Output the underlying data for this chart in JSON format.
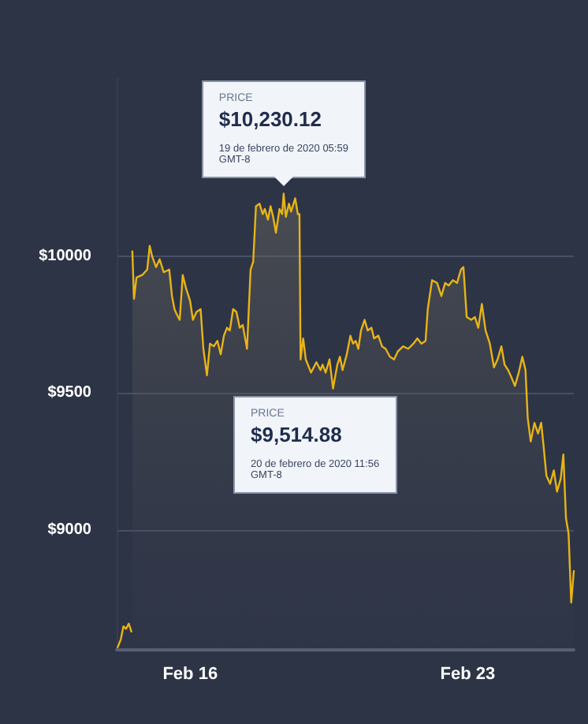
{
  "chart_data": {
    "type": "area",
    "x": [
      "2020-02-14T04:05",
      "2020-02-14T06:00",
      "2020-02-14T07:35",
      "2020-02-14T09:10",
      "2020-02-14T10:50",
      "2020-02-14T12:25",
      "2020-02-14T12:45",
      "2020-02-14T13:00",
      "2020-02-14T14:00",
      "2020-02-14T15:30",
      "2020-02-14T19:00",
      "2020-02-14T22:00",
      "2020-02-14T23:30",
      "2020-02-15T01:00",
      "2020-02-15T03:20",
      "2020-02-15T05:30",
      "2020-02-15T08:00",
      "2020-02-15T11:20",
      "2020-02-15T13:00",
      "2020-02-15T14:30",
      "2020-02-15T16:00",
      "2020-02-15T17:40",
      "2020-02-15T19:30",
      "2020-02-15T21:30",
      "2020-02-16T00:00",
      "2020-02-16T01:40",
      "2020-02-16T03:50",
      "2020-02-16T06:20",
      "2020-02-16T08:00",
      "2020-02-16T10:10",
      "2020-02-16T12:00",
      "2020-02-16T14:20",
      "2020-02-16T16:30",
      "2020-02-16T18:30",
      "2020-02-16T20:25",
      "2020-02-16T22:20",
      "2020-02-17T00:00",
      "2020-02-17T02:00",
      "2020-02-17T04:00",
      "2020-02-17T06:00",
      "2020-02-17T07:50",
      "2020-02-17T10:25",
      "2020-02-17T12:35",
      "2020-02-17T14:10",
      "2020-02-17T15:50",
      "2020-02-17T18:00",
      "2020-02-17T19:55",
      "2020-02-17T21:10",
      "2020-02-17T23:05",
      "2020-02-18T00:40",
      "2020-02-18T02:15",
      "2020-02-18T03:55",
      "2020-02-18T06:05",
      "2020-02-18T07:40",
      "2020-02-18T08:35",
      "2020-02-18T09:55",
      "2020-02-18T11:50",
      "2020-02-18T13:05",
      "2020-02-18T15:35",
      "2020-02-18T17:10",
      "2020-02-18T18:10",
      "2020-02-18T18:50",
      "2020-02-18T20:25",
      "2020-02-18T22:00",
      "2020-02-19T01:10",
      "2020-02-19T04:25",
      "2020-02-19T06:55",
      "2020-02-19T08:10",
      "2020-02-19T10:00",
      "2020-02-19T12:20",
      "2020-02-19T14:30",
      "2020-02-19T17:05",
      "2020-02-19T18:40",
      "2020-02-19T20:15",
      "2020-02-19T22:50",
      "2020-02-20T01:00",
      "2020-02-20T02:35",
      "2020-02-20T04:10",
      "2020-02-20T05:50",
      "2020-02-20T07:25",
      "2020-02-20T09:35",
      "2020-02-20T11:30",
      "2020-02-20T13:45",
      "2020-02-20T15:20",
      "2020-02-20T17:55",
      "2020-02-20T20:10",
      "2020-02-20T22:20",
      "2020-02-21T00:55",
      "2020-02-21T03:25",
      "2020-02-21T05:40",
      "2020-02-21T08:55",
      "2020-02-21T12:00",
      "2020-02-21T15:10",
      "2020-02-21T17:30",
      "2020-02-21T20:00",
      "2020-02-21T22:30",
      "2020-02-21T23:50",
      "2020-02-22T02:25",
      "2020-02-22T05:30",
      "2020-02-22T08:05",
      "2020-02-22T10:20",
      "2020-02-22T12:30",
      "2020-02-22T15:05",
      "2020-02-22T17:35",
      "2020-02-22T19:55",
      "2020-02-22T21:25",
      "2020-02-22T23:25",
      "2020-02-23T02:10",
      "2020-02-23T04:25",
      "2020-02-23T06:25",
      "2020-02-23T08:35",
      "2020-02-23T10:50",
      "2020-02-23T13:25",
      "2020-02-23T15:55",
      "2020-02-23T18:05",
      "2020-02-23T20:25",
      "2020-02-23T22:20",
      "2020-02-24T00:30",
      "2020-02-24T02:40",
      "2020-02-24T04:35",
      "2020-02-24T06:55",
      "2020-02-24T09:05",
      "2020-02-24T11:00",
      "2020-02-24T12:20",
      "2020-02-24T14:10",
      "2020-02-24T16:25",
      "2020-02-24T18:35",
      "2020-02-24T20:30",
      "2020-02-24T21:50",
      "2020-02-24T23:40",
      "2020-02-25T01:55",
      "2020-02-25T04:10",
      "2020-02-25T06:05",
      "2020-02-25T08:20",
      "2020-02-25T09:55",
      "2020-02-25T11:30",
      "2020-02-25T13:05",
      "2020-02-25T14:40",
      "2020-02-25T16:15"
    ],
    "series": [
      {
        "color": "#e8b416",
        "values": [
          8569,
          8598,
          8646,
          8637,
          8656,
          8627,
          null,
          10019,
          9845,
          9923,
          9932,
          9952,
          10039,
          10000,
          9961,
          9990,
          9942,
          9952,
          9855,
          9807,
          9787,
          9768,
          9932,
          9884,
          9836,
          9768,
          9797,
          9807,
          9662,
          9565,
          9681,
          9671,
          9691,
          9642,
          9710,
          9739,
          9729,
          9807,
          9797,
          9739,
          9749,
          9662,
          9952,
          9981,
          10184,
          10193,
          10155,
          10174,
          10135,
          10184,
          10145,
          10087,
          10174,
          10155,
          10230,
          10145,
          10193,
          10164,
          10213,
          10155,
          10155,
          9623,
          9700,
          9623,
          9575,
          9613,
          9584,
          9604,
          9575,
          9623,
          9517,
          9604,
          9633,
          9584,
          9642,
          9710,
          9681,
          9691,
          9662,
          9729,
          9768,
          9729,
          9739,
          9700,
          9710,
          9671,
          9662,
          9633,
          9623,
          9652,
          9671,
          9662,
          9681,
          9700,
          9681,
          9691,
          9807,
          9913,
          9903,
          9855,
          9903,
          9894,
          9913,
          9903,
          9952,
          9961,
          9778,
          9768,
          9778,
          9739,
          9826,
          9729,
          9681,
          9594,
          9623,
          9671,
          9604,
          9584,
          9555,
          9526,
          9575,
          9633,
          9584,
          9410,
          9323,
          9391,
          9352,
          9391,
          9313,
          9197,
          9168,
          9217,
          9139,
          9187,
          9275,
          9043,
          8985,
          8733,
          8849
        ]
      }
    ],
    "xlim": [
      "2020-02-14T03:30",
      "2020-02-25T16:15"
    ],
    "xticks": [
      {
        "value": "2020-02-16",
        "label": "Feb 16"
      },
      {
        "value": "2020-02-23",
        "label": "Feb 23"
      }
    ],
    "ylim": [
      8560,
      10650
    ],
    "yticks": [
      {
        "value": 9000,
        "label": "$9000"
      },
      {
        "value": 9500,
        "label": "$9500"
      },
      {
        "value": 10000,
        "label": "$10000"
      }
    ],
    "grid": "y",
    "marker": "none",
    "line_style": "solid",
    "annotations": [
      {
        "text": "PRICE\n$10,230.12\n19 de febrero de 2020 05:59\nGMT-8",
        "x": "2020-02-18T08:35",
        "y": 10230.12
      },
      "PRICE\n$9,514.88\n20 de febrero de 2020 11:56\nGMT-8"
    ]
  }
}
